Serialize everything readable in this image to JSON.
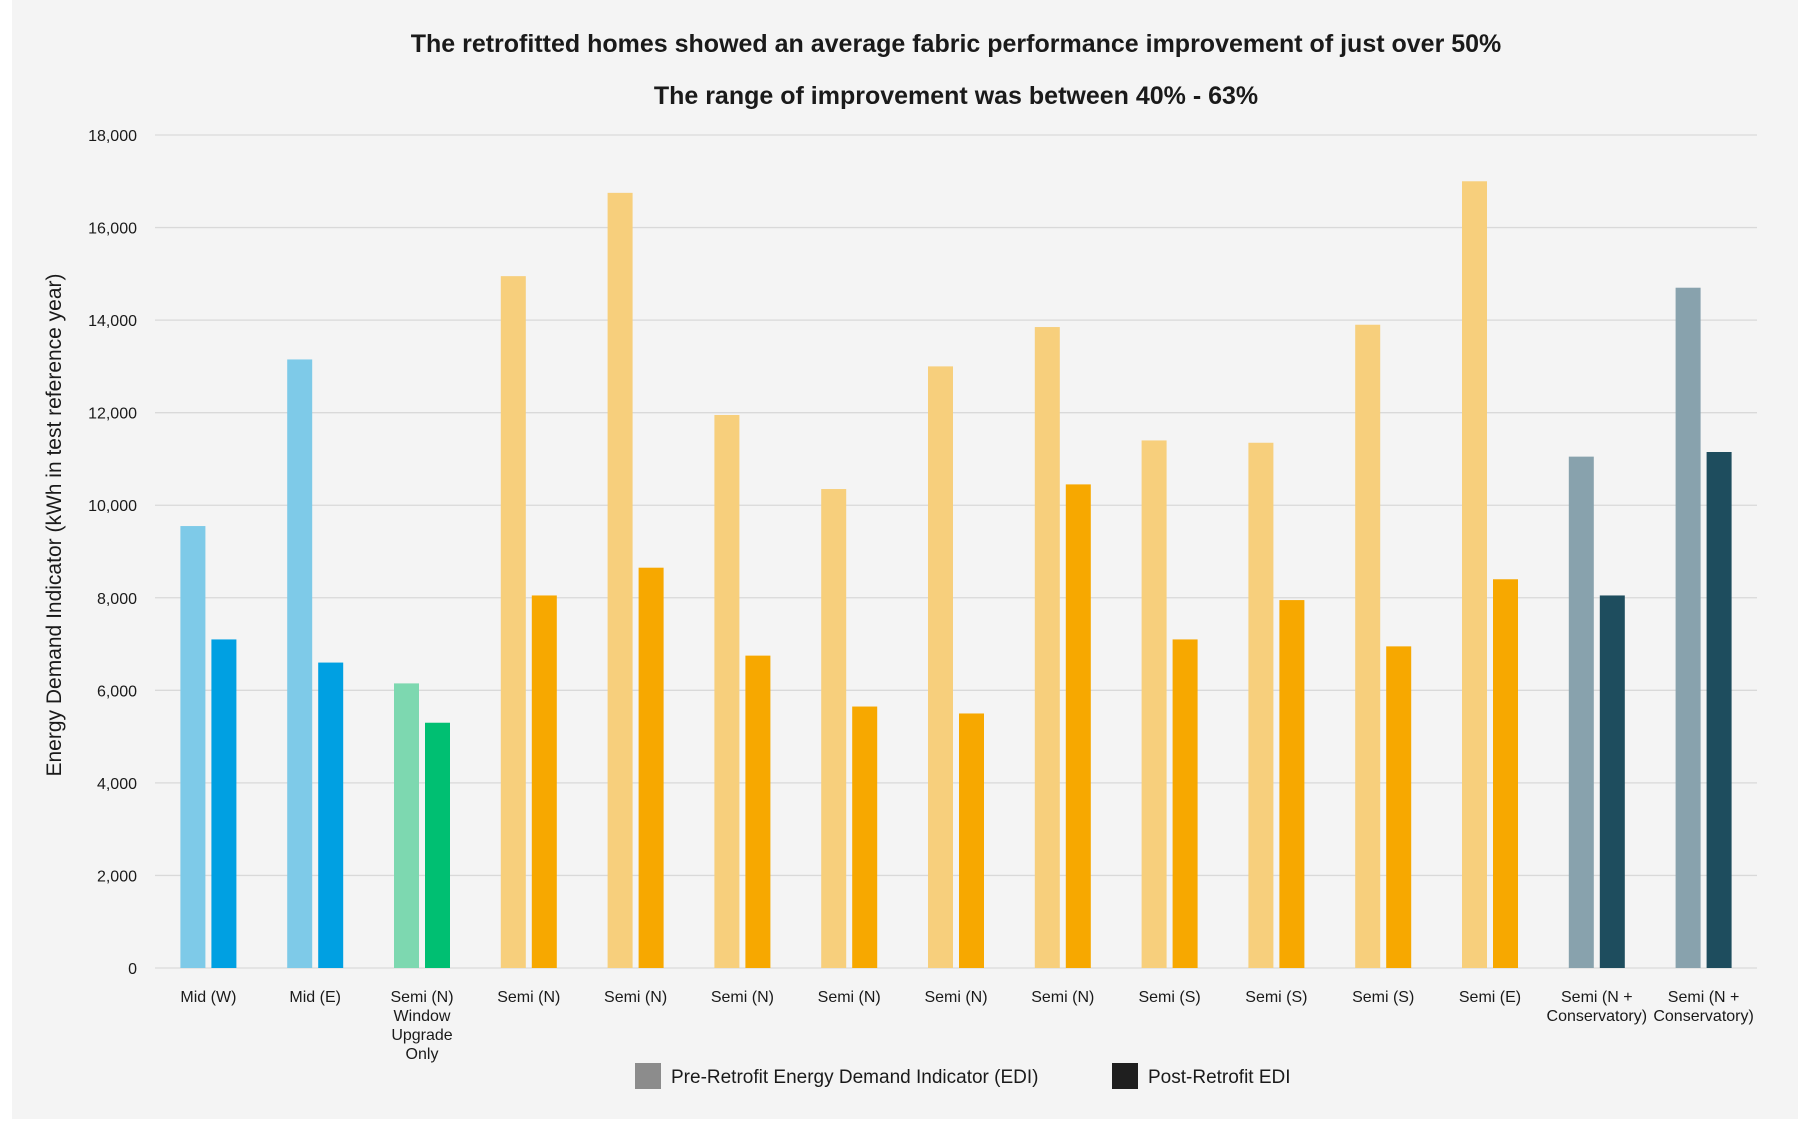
{
  "chart_data": {
    "type": "bar",
    "title": "The retrofitted homes showed an average fabric performance improvement of just over 50%",
    "subtitle": "The range of improvement was between 40% - 63%",
    "xlabel": "",
    "ylabel": "Energy Demand Indicator (kWh in test reference year)",
    "ylim": [
      0,
      18000
    ],
    "yticks": [
      "0",
      "2,000",
      "4,000",
      "6,000",
      "8,000",
      "10,000",
      "12,000",
      "14,000",
      "16,000",
      "18,000"
    ],
    "grid": true,
    "legend_position": "bottom",
    "categories": [
      [
        "Mid (W)"
      ],
      [
        "Mid (E)"
      ],
      [
        "Semi (N)",
        "Window",
        "Upgrade",
        "Only"
      ],
      [
        "Semi (N)"
      ],
      [
        "Semi (N)"
      ],
      [
        "Semi (N)"
      ],
      [
        "Semi (N)"
      ],
      [
        "Semi (N)"
      ],
      [
        "Semi (N)"
      ],
      [
        "Semi (S)"
      ],
      [
        "Semi (S)"
      ],
      [
        "Semi (S)"
      ],
      [
        "Semi (E)"
      ],
      [
        "Semi (N +",
        "Conservatory)"
      ],
      [
        "Semi (N +",
        "Conservatory)"
      ]
    ],
    "series": [
      {
        "name": "Pre-Retrofit Energy Demand Indicator (EDI)",
        "values": [
          9550,
          13150,
          6150,
          14950,
          16750,
          11950,
          10350,
          13000,
          13850,
          11400,
          11350,
          13900,
          17000,
          11050,
          14700
        ]
      },
      {
        "name": "Post-Retrofit EDI",
        "values": [
          7100,
          6600,
          5300,
          8050,
          8650,
          6750,
          5650,
          5500,
          10450,
          7100,
          7950,
          6950,
          8400,
          8050,
          11150
        ]
      }
    ],
    "colors": {
      "pre": [
        "#7ecae8",
        "#7ecae8",
        "#7dd8b0",
        "#f7cf7c",
        "#f7cf7c",
        "#f7cf7c",
        "#f7cf7c",
        "#f7cf7c",
        "#f7cf7c",
        "#f7cf7c",
        "#f7cf7c",
        "#f7cf7c",
        "#f7cf7c",
        "#88a2ad",
        "#88a2ad"
      ],
      "post": [
        "#00a0e2",
        "#00a0e2",
        "#00bf72",
        "#f7a800",
        "#f7a800",
        "#f7a800",
        "#f7a800",
        "#f7a800",
        "#f7a800",
        "#f7a800",
        "#f7a800",
        "#f7a800",
        "#f7a800",
        "#1e4d5e",
        "#1e4d5e"
      ],
      "legend_pre": "#8c8c8c",
      "legend_post": "#1f1f1f",
      "grid": "#d9d9d9",
      "background": "#f4f4f4"
    }
  }
}
